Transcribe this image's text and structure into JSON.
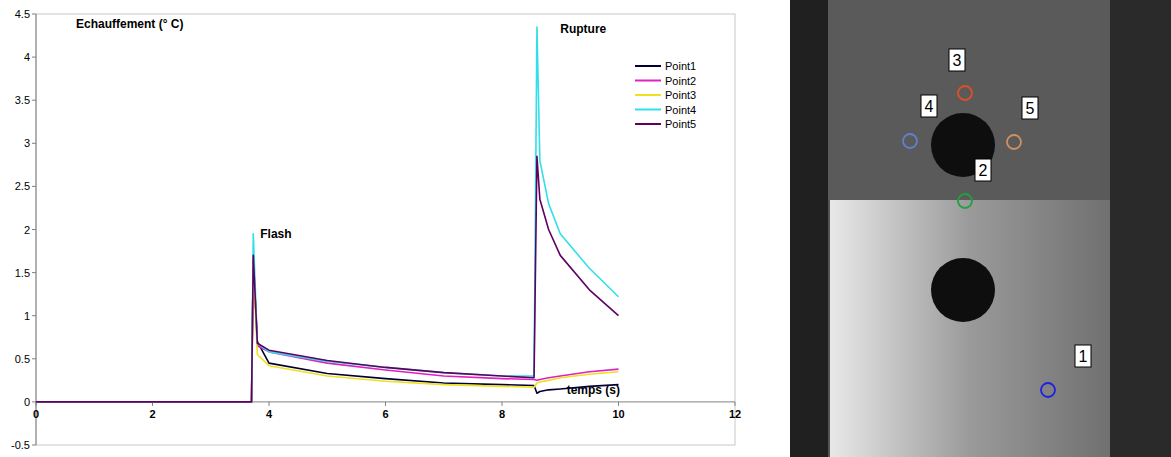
{
  "chart_data": {
    "type": "line",
    "y_label": "Echauffement (° C)",
    "x_label": "temps (s)",
    "annotations": [
      {
        "text": "Flash",
        "x": 3.85,
        "y": 1.9
      },
      {
        "text": "Rupture",
        "x": 9.0,
        "y": 4.28
      }
    ],
    "x": [
      0,
      1,
      2,
      3,
      3.7,
      3.73,
      3.8,
      4,
      5,
      6,
      7,
      8,
      8.55,
      8.6,
      8.65,
      8.8,
      9,
      9.5,
      10
    ],
    "series": [
      {
        "name": "Point1",
        "color": "#000033",
        "values": [
          0,
          0,
          0,
          0,
          0,
          1.65,
          0.7,
          0.45,
          0.33,
          0.27,
          0.22,
          0.2,
          0.19,
          0.1,
          0.12,
          0.14,
          0.15,
          0.18,
          0.2
        ]
      },
      {
        "name": "Point2",
        "color": "#e020c0",
        "values": [
          0,
          0,
          0,
          0,
          0,
          1.7,
          0.65,
          0.58,
          0.45,
          0.37,
          0.3,
          0.27,
          0.26,
          0.25,
          0.26,
          0.28,
          0.3,
          0.35,
          0.38
        ]
      },
      {
        "name": "Point3",
        "color": "#f0e020",
        "values": [
          0,
          0,
          0,
          0,
          0,
          1.6,
          0.55,
          0.42,
          0.3,
          0.24,
          0.2,
          0.18,
          0.17,
          0.22,
          0.23,
          0.25,
          0.28,
          0.32,
          0.35
        ]
      },
      {
        "name": "Point4",
        "color": "#30e0e8",
        "values": [
          0,
          0,
          0,
          0,
          0,
          1.95,
          0.68,
          0.58,
          0.47,
          0.4,
          0.34,
          0.3,
          0.3,
          4.35,
          2.8,
          2.3,
          1.95,
          1.55,
          1.22
        ]
      },
      {
        "name": "Point5",
        "color": "#600060",
        "values": [
          0,
          0,
          0,
          0,
          0,
          1.7,
          0.68,
          0.6,
          0.48,
          0.4,
          0.34,
          0.3,
          0.28,
          2.85,
          2.35,
          2.0,
          1.7,
          1.3,
          1.0
        ]
      }
    ],
    "xlim": [
      0,
      12
    ],
    "xticks": [
      0,
      2,
      4,
      6,
      8,
      10,
      12
    ],
    "ylim": [
      -0.5,
      4.5
    ],
    "yticks": [
      -0.5,
      0,
      0.5,
      1,
      1.5,
      2,
      2.5,
      3,
      3.5,
      4,
      4.5
    ],
    "grid": false,
    "legend": "top-right"
  },
  "image": {
    "markers": [
      {
        "label": "1",
        "color": "#2020e0"
      },
      {
        "label": "2",
        "color": "#20a040"
      },
      {
        "label": "3",
        "color": "#e05020"
      },
      {
        "label": "4",
        "color": "#6080d0"
      },
      {
        "label": "5",
        "color": "#d09060"
      }
    ]
  }
}
